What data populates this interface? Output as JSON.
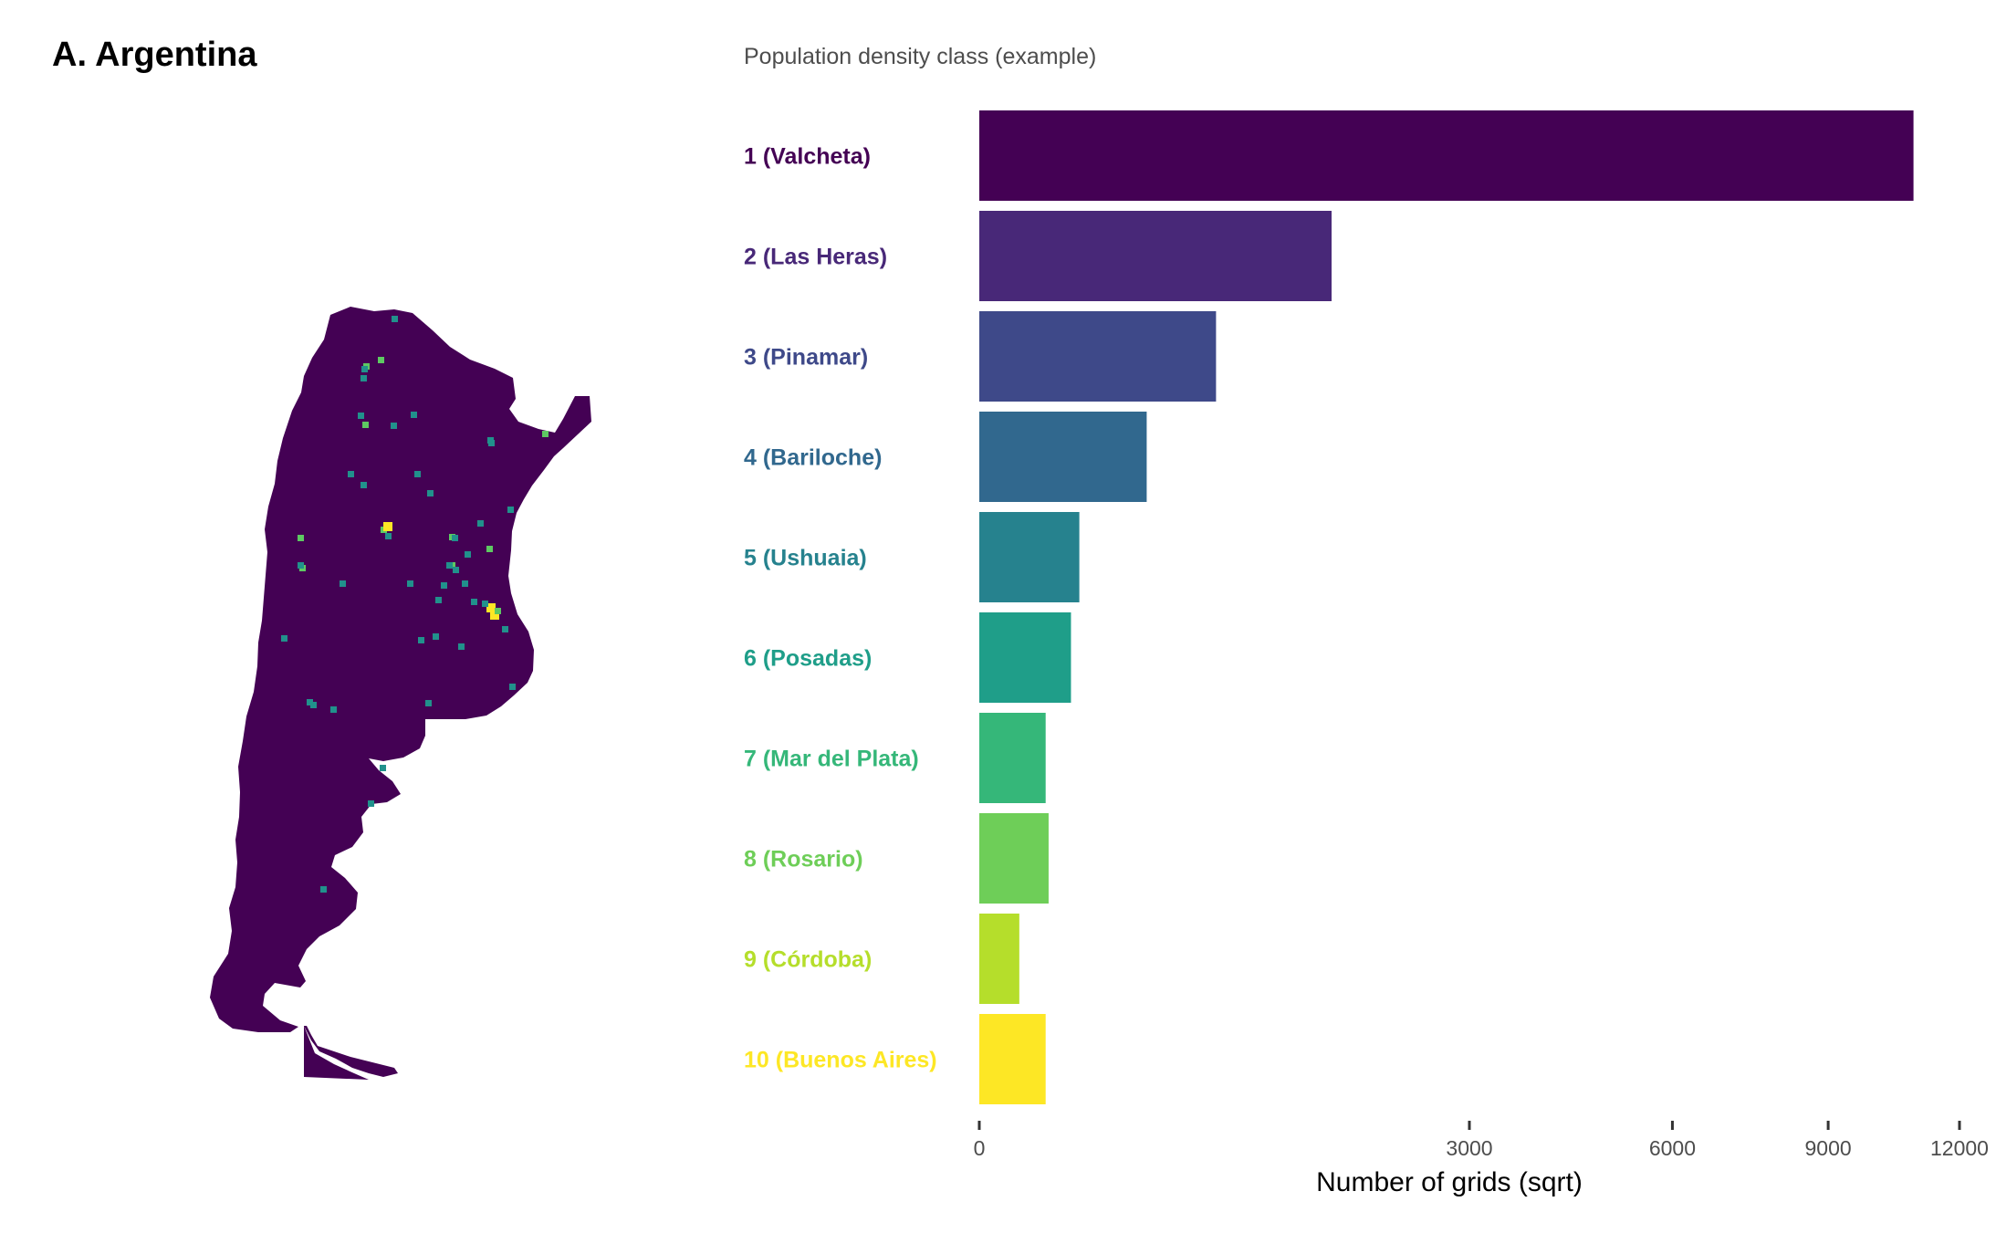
{
  "panel_title": "A. Argentina",
  "chart_data": {
    "type": "bar",
    "orientation": "horizontal",
    "legend_title": "Population density class (example)",
    "categories": [
      "1 (Valcheta)",
      "2 (Las Heras)",
      "3 (Pinamar)",
      "4 (Bariloche)",
      "5 (Ushuaia)",
      "6 (Posadas)",
      "7 (Mar del Plata)",
      "8 (Rosario)",
      "9 (Córdoba)",
      "10 (Buenos Aires)"
    ],
    "values": [
      10900,
      1550,
      700,
      350,
      125,
      105,
      55,
      60,
      20,
      55
    ],
    "colors": [
      "#440154",
      "#482878",
      "#3e4989",
      "#31688e",
      "#26828e",
      "#1f9e89",
      "#35b779",
      "#6ece58",
      "#b5de2b",
      "#fde725"
    ],
    "xlabel": "Number of grids (sqrt)",
    "x_scale": "sqrt",
    "xlim": [
      0,
      12000
    ],
    "xticks": [
      "0",
      "3000",
      "6000",
      "9000",
      "12000"
    ],
    "xtick_values": [
      0,
      3000,
      6000,
      9000,
      12000
    ],
    "grid": false
  },
  "map": {
    "region": "Argentina",
    "fill_color": "#440154",
    "hotspot_colors": [
      "#21918c",
      "#5ec962",
      "#fde725"
    ]
  }
}
